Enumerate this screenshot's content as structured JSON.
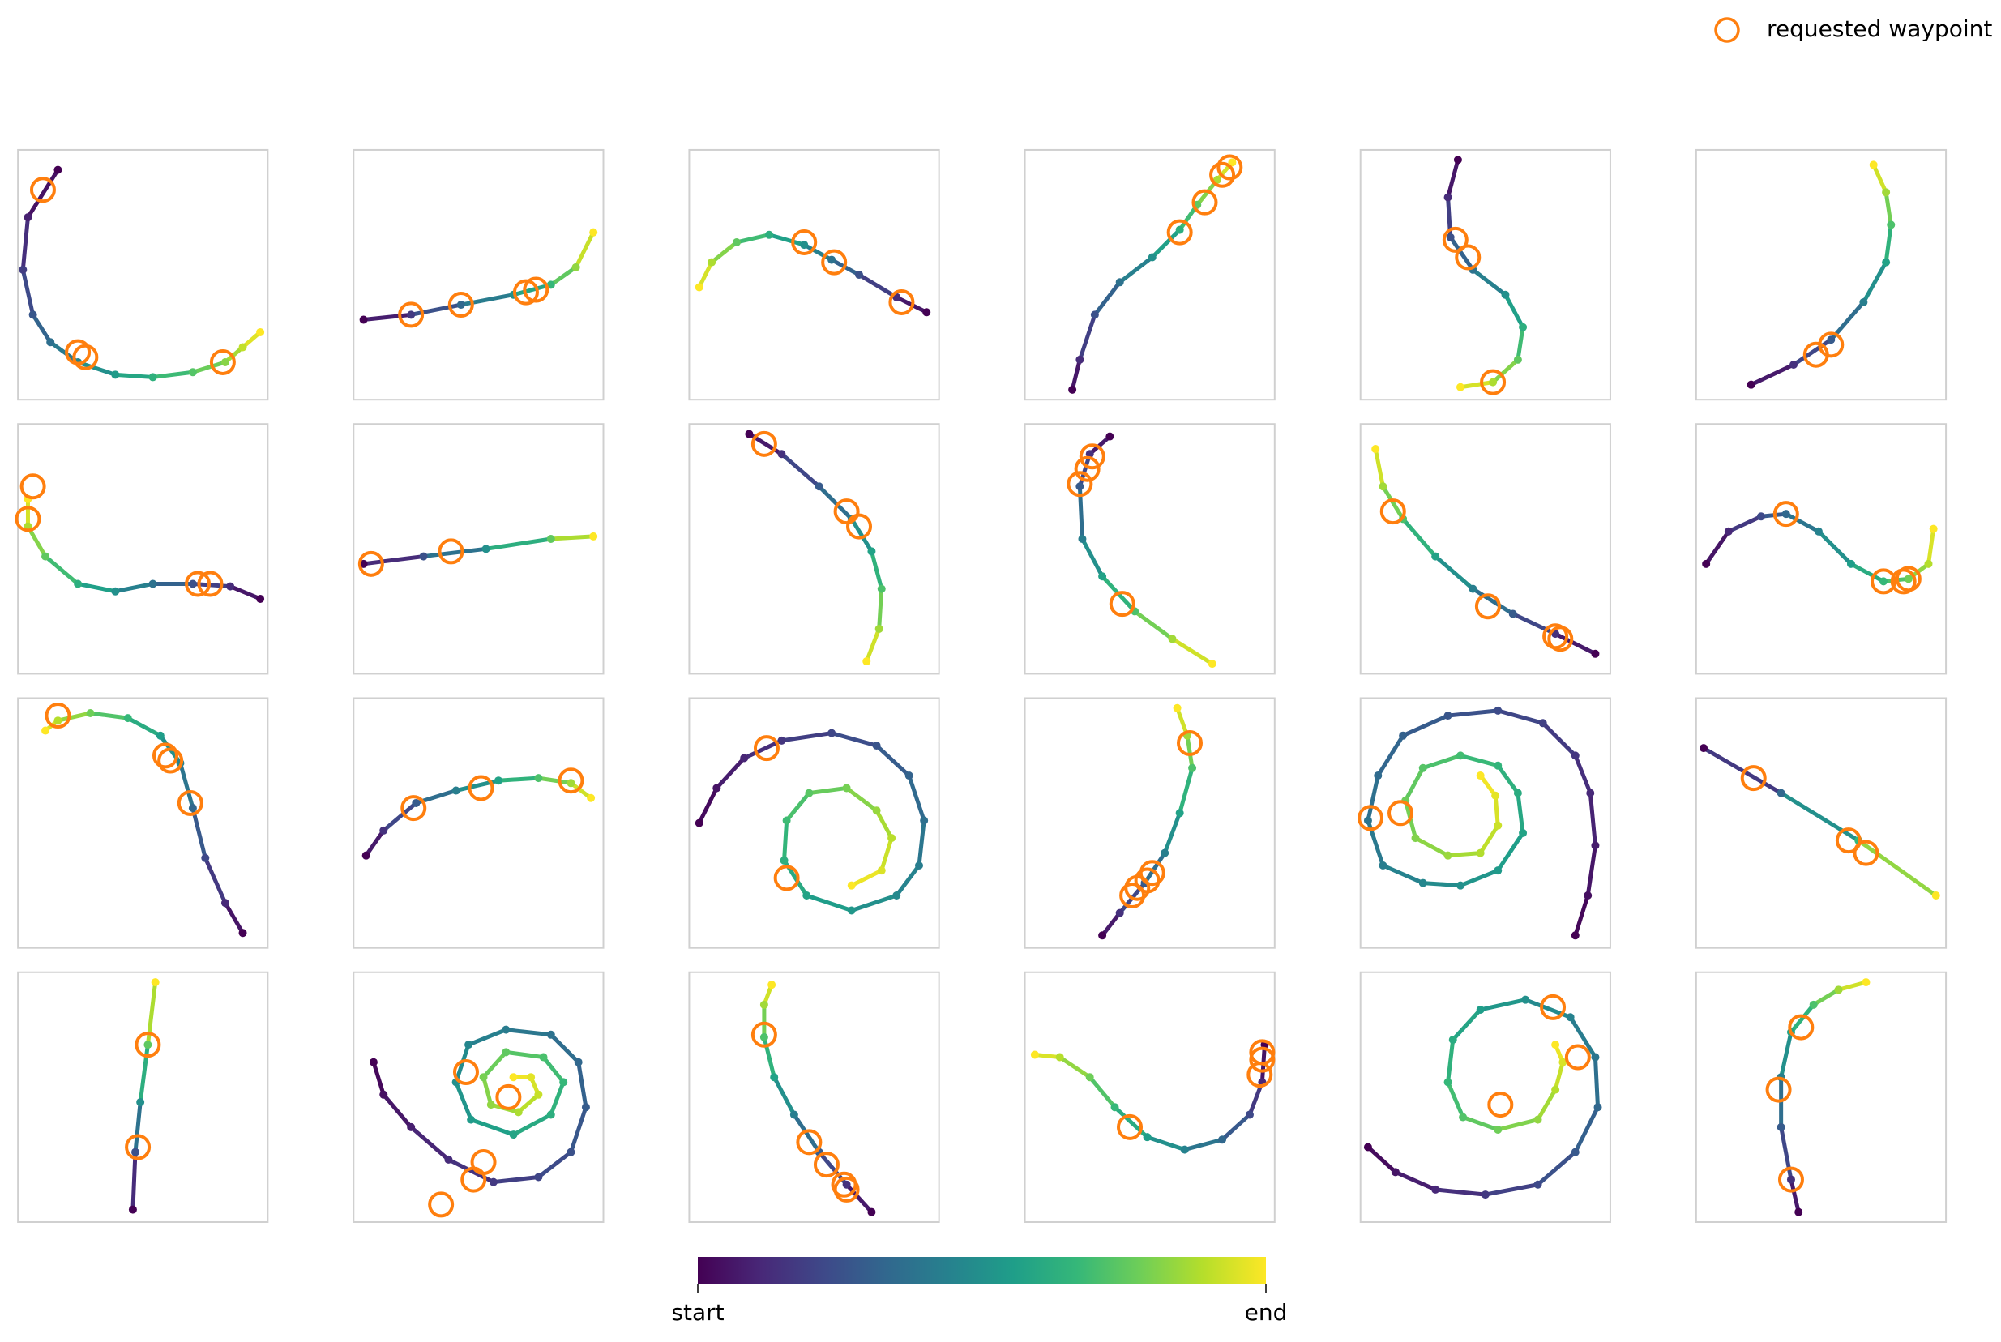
{
  "legend": {
    "label": "requested waypoint",
    "color": "#ff7f0e",
    "corner": "upper right"
  },
  "colorbar": {
    "colors": [
      "#440154",
      "#482878",
      "#3e4989",
      "#31688e",
      "#26828e",
      "#1f9e89",
      "#35b779",
      "#6ece58",
      "#b5de2b",
      "#fde725"
    ],
    "start_label": "start",
    "end_label": "end"
  },
  "chart_data": [
    {
      "type": "trajectory",
      "xlim": [
        0,
        100
      ],
      "ylim": [
        0,
        100
      ],
      "x": [
        16,
        4,
        2,
        6,
        13,
        24,
        39,
        54,
        70,
        83,
        90,
        97
      ],
      "y": [
        92,
        73,
        52,
        34,
        23,
        15,
        10,
        9,
        11,
        15,
        21,
        27
      ],
      "waypoints": {
        "x": [
          10,
          24,
          27,
          82
        ],
        "y": [
          84,
          19,
          17,
          15
        ]
      }
    },
    {
      "type": "trajectory",
      "xlim": [
        0,
        100
      ],
      "ylim": [
        0,
        100
      ],
      "x": [
        4,
        23,
        43,
        64,
        79,
        89,
        96
      ],
      "y": [
        32,
        34,
        38,
        42,
        46,
        53,
        67
      ],
      "waypoints": {
        "x": [
          23,
          43,
          69,
          73
        ],
        "y": [
          34,
          38,
          43,
          44
        ]
      }
    },
    {
      "type": "trajectory",
      "xlim": [
        0,
        100
      ],
      "ylim": [
        0,
        100
      ],
      "x": [
        95,
        83,
        68,
        57,
        46,
        32,
        19,
        9,
        4
      ],
      "y": [
        35,
        41,
        50,
        56,
        62,
        66,
        63,
        55,
        45
      ],
      "waypoints": {
        "x": [
          46,
          58,
          85
        ],
        "y": [
          63,
          55,
          39
        ]
      }
    },
    {
      "type": "trajectory",
      "xlim": [
        0,
        100
      ],
      "ylim": [
        0,
        100
      ],
      "x": [
        19,
        22,
        28,
        38,
        51,
        62,
        69,
        77,
        83
      ],
      "y": [
        4,
        16,
        34,
        47,
        57,
        68,
        78,
        88,
        95
      ],
      "waypoints": {
        "x": [
          62,
          72,
          79,
          82
        ],
        "y": [
          67,
          79,
          90,
          93
        ]
      }
    },
    {
      "type": "trajectory",
      "xlim": [
        0,
        100
      ],
      "ylim": [
        0,
        100
      ],
      "x": [
        39,
        35,
        36,
        45,
        58,
        65,
        63,
        53,
        40
      ],
      "y": [
        96,
        81,
        65,
        52,
        42,
        29,
        16,
        7,
        5
      ],
      "waypoints": {
        "x": [
          38,
          43,
          53
        ],
        "y": [
          64,
          57,
          7
        ]
      }
    },
    {
      "type": "trajectory",
      "xlim": [
        0,
        100
      ],
      "ylim": [
        0,
        100
      ],
      "x": [
        22,
        39,
        54,
        67,
        76,
        78,
        76,
        71
      ],
      "y": [
        6,
        14,
        24,
        39,
        55,
        70,
        83,
        94
      ],
      "waypoints": {
        "x": [
          48,
          54
        ],
        "y": [
          18,
          22
        ]
      }
    },
    {
      "type": "trajectory",
      "xlim": [
        0,
        100
      ],
      "ylim": [
        0,
        100
      ],
      "x": [
        97,
        85,
        70,
        54,
        39,
        24,
        11,
        4,
        4
      ],
      "y": [
        30,
        35,
        36,
        36,
        33,
        36,
        47,
        59,
        70
      ],
      "waypoints": {
        "x": [
          6,
          4,
          72,
          77
        ],
        "y": [
          75,
          62,
          36,
          36
        ]
      }
    },
    {
      "type": "trajectory",
      "xlim": [
        0,
        100
      ],
      "ylim": [
        0,
        100
      ],
      "x": [
        4,
        28,
        53,
        79,
        96
      ],
      "y": [
        44,
        47,
        50,
        54,
        55
      ],
      "waypoints": {
        "x": [
          7,
          39
        ],
        "y": [
          44,
          49
        ]
      }
    },
    {
      "type": "trajectory",
      "xlim": [
        0,
        100
      ],
      "ylim": [
        0,
        100
      ],
      "x": [
        24,
        37,
        52,
        65,
        73,
        77,
        76,
        71
      ],
      "y": [
        96,
        88,
        75,
        62,
        49,
        34,
        18,
        5
      ],
      "waypoints": {
        "x": [
          30,
          63,
          68
        ],
        "y": [
          92,
          65,
          59
        ]
      }
    },
    {
      "type": "trajectory",
      "xlim": [
        0,
        100
      ],
      "ylim": [
        0,
        100
      ],
      "x": [
        34,
        26,
        22,
        23,
        31,
        44,
        59,
        75
      ],
      "y": [
        95,
        88,
        75,
        54,
        39,
        25,
        14,
        4
      ],
      "waypoints": {
        "x": [
          27,
          25,
          22,
          39
        ],
        "y": [
          87,
          82,
          76,
          28
        ]
      }
    },
    {
      "type": "trajectory",
      "xlim": [
        0,
        100
      ],
      "ylim": [
        0,
        100
      ],
      "x": [
        94,
        78,
        61,
        45,
        30,
        17,
        9,
        6
      ],
      "y": [
        8,
        16,
        24,
        34,
        47,
        62,
        75,
        90
      ],
      "waypoints": {
        "x": [
          13,
          51,
          78,
          80
        ],
        "y": [
          65,
          27,
          15,
          14
        ]
      }
    },
    {
      "type": "trajectory",
      "xlim": [
        0,
        100
      ],
      "ylim": [
        0,
        100
      ],
      "x": [
        4,
        13,
        26,
        36,
        49,
        62,
        75,
        85,
        93,
        95
      ],
      "y": [
        44,
        57,
        63,
        64,
        57,
        44,
        37,
        38,
        44,
        58
      ],
      "waypoints": {
        "x": [
          36,
          75,
          83,
          85
        ],
        "y": [
          64,
          37,
          37,
          38
        ]
      }
    },
    {
      "type": "trajectory",
      "xlim": [
        0,
        100
      ],
      "ylim": [
        0,
        100
      ],
      "x": [
        90,
        83,
        75,
        70,
        65,
        57,
        44,
        29,
        16,
        11
      ],
      "y": [
        6,
        18,
        36,
        56,
        74,
        85,
        92,
        94,
        91,
        87
      ],
      "waypoints": {
        "x": [
          16,
          59,
          61,
          69
        ],
        "y": [
          93,
          77,
          75,
          58
        ]
      }
    },
    {
      "type": "trajectory",
      "xlim": [
        0,
        100
      ],
      "ylim": [
        0,
        100
      ],
      "x": [
        5,
        12,
        25,
        41,
        58,
        74,
        87,
        95
      ],
      "y": [
        37,
        47,
        58,
        63,
        67,
        68,
        66,
        60
      ],
      "waypoints": {
        "x": [
          24,
          51,
          87
        ],
        "y": [
          56,
          64,
          67
        ]
      }
    },
    {
      "type": "trajectory",
      "xlim": [
        0,
        100
      ],
      "ylim": [
        0,
        100
      ],
      "x": [
        4,
        11,
        22,
        37,
        57,
        75,
        88,
        94,
        92,
        83,
        65,
        47,
        38,
        39,
        48,
        63,
        75,
        81,
        77,
        65
      ],
      "y": [
        50,
        64,
        76,
        83,
        86,
        81,
        69,
        51,
        33,
        21,
        15,
        21,
        35,
        51,
        62,
        64,
        55,
        44,
        31,
        25
      ],
      "waypoints": {
        "x": [
          31,
          39
        ],
        "y": [
          80,
          28
        ]
      }
    },
    {
      "type": "trajectory",
      "xlim": [
        0,
        100
      ],
      "ylim": [
        0,
        100
      ],
      "x": [
        31,
        38,
        48,
        56,
        62,
        67,
        65,
        61
      ],
      "y": [
        5,
        14,
        26,
        38,
        54,
        72,
        85,
        96
      ],
      "waypoints": {
        "x": [
          66,
          51,
          49,
          45,
          43
        ],
        "y": [
          82,
          30,
          27,
          24,
          21
        ]
      }
    },
    {
      "type": "trajectory",
      "xlim": [
        0,
        100
      ],
      "ylim": [
        0,
        100
      ],
      "x": [
        86,
        91,
        94,
        92,
        86,
        73,
        55,
        35,
        17,
        7,
        3,
        9,
        25,
        40,
        55,
        65,
        63,
        55,
        40,
        25,
        18,
        22,
        35,
        48,
        55,
        54,
        48
      ],
      "y": [
        5,
        21,
        41,
        62,
        77,
        90,
        95,
        93,
        85,
        69,
        51,
        33,
        26,
        25,
        31,
        46,
        62,
        73,
        77,
        72,
        59,
        44,
        37,
        38,
        49,
        61,
        69
      ],
      "waypoints": {
        "x": [
          4,
          16
        ],
        "y": [
          52,
          54
        ]
      }
    },
    {
      "type": "trajectory",
      "xlim": [
        0,
        100
      ],
      "ylim": [
        0,
        100
      ],
      "x": [
        3,
        34,
        65,
        96
      ],
      "y": [
        80,
        62,
        43,
        21
      ],
      "waypoints": {
        "x": [
          23,
          61,
          68
        ],
        "y": [
          68,
          43,
          38
        ]
      }
    },
    {
      "type": "trajectory",
      "xlim": [
        0,
        100
      ],
      "ylim": [
        0,
        100
      ],
      "x": [
        46,
        47,
        49,
        52,
        55
      ],
      "y": [
        5,
        28,
        48,
        71,
        96
      ],
      "waypoints": {
        "x": [
          52,
          48
        ],
        "y": [
          71,
          30
        ]
      }
    },
    {
      "type": "trajectory",
      "xlim": [
        0,
        100
      ],
      "ylim": [
        0,
        100
      ],
      "x": [
        8,
        12,
        23,
        38,
        56,
        74,
        87,
        93,
        90,
        79,
        61,
        46,
        41,
        47,
        64,
        79,
        84,
        76,
        61,
        52,
        55,
        66,
        74,
        71,
        64
      ],
      "y": [
        64,
        51,
        38,
        25,
        16,
        18,
        28,
        46,
        64,
        75,
        77,
        71,
        56,
        41,
        35,
        43,
        56,
        66,
        68,
        58,
        47,
        44,
        51,
        58,
        58
      ],
      "waypoints": {
        "x": [
          35,
          48,
          52,
          45,
          62
        ],
        "y": [
          7,
          17,
          24,
          60,
          50
        ]
      }
    },
    {
      "type": "trajectory",
      "xlim": [
        0,
        100
      ],
      "ylim": [
        0,
        100
      ],
      "x": [
        73,
        63,
        52,
        42,
        34,
        30,
        30,
        33
      ],
      "y": [
        4,
        15,
        28,
        43,
        58,
        74,
        87,
        95
      ],
      "waypoints": {
        "x": [
          30,
          48,
          55,
          62,
          63
        ],
        "y": [
          75,
          32,
          23,
          15,
          13
        ]
      }
    },
    {
      "type": "trajectory",
      "xlim": [
        0,
        100
      ],
      "ylim": [
        0,
        100
      ],
      "x": [
        96,
        95,
        90,
        79,
        64,
        49,
        36,
        26,
        14,
        4
      ],
      "y": [
        71,
        56,
        43,
        33,
        29,
        34,
        46,
        58,
        66,
        67
      ],
      "waypoints": {
        "x": [
          95,
          95,
          94,
          42
        ],
        "y": [
          68,
          65,
          59,
          38
        ]
      }
    },
    {
      "type": "trajectory",
      "xlim": [
        0,
        100
      ],
      "ylim": [
        0,
        100
      ],
      "x": [
        3,
        14,
        30,
        50,
        71,
        86,
        95,
        94,
        84,
        66,
        48,
        37,
        35,
        41,
        55,
        71,
        78,
        81,
        78
      ],
      "y": [
        30,
        20,
        13,
        11,
        15,
        28,
        46,
        66,
        82,
        89,
        85,
        73,
        56,
        42,
        37,
        41,
        53,
        64,
        71
      ],
      "waypoints": {
        "x": [
          77,
          87,
          56
        ],
        "y": [
          86,
          66,
          47
        ]
      }
    },
    {
      "type": "trajectory",
      "xlim": [
        0,
        100
      ],
      "ylim": [
        0,
        100
      ],
      "x": [
        41,
        38,
        34,
        34,
        38,
        47,
        57,
        68
      ],
      "y": [
        4,
        17,
        38,
        58,
        76,
        87,
        93,
        96
      ],
      "waypoints": {
        "x": [
          38,
          33,
          42
        ],
        "y": [
          17,
          53,
          78
        ]
      }
    }
  ]
}
